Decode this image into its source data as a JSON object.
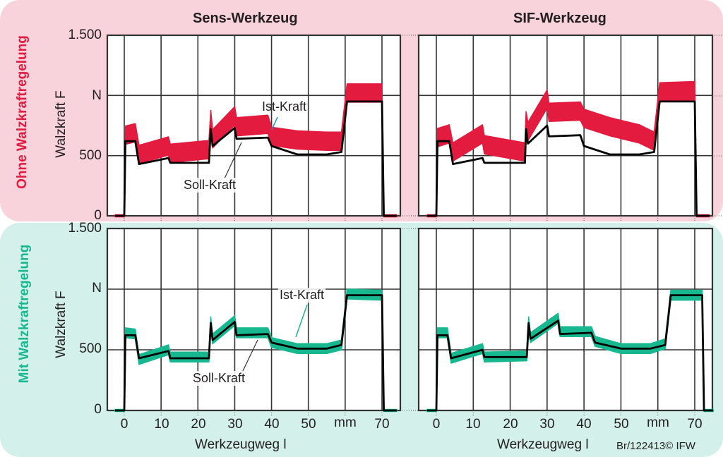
{
  "colors": {
    "ist_top": "#e31b3f",
    "ist_bottom": "#17b890",
    "soll": "#000000",
    "panel_top_bg": "#f8d3dc",
    "panel_bottom_bg": "#d3f0ea",
    "label_top": "#e31b3f",
    "label_bottom": "#17b890",
    "leader_top": "#1a8fd0"
  },
  "columns": [
    "Sens-Werkzeug",
    "SIF-Werkzeug"
  ],
  "rows": [
    "Ohne Walzkraftregelung",
    "Mit Walzkraftregelung"
  ],
  "y_axis": {
    "label": "Walzkraft F",
    "unit": "N",
    "ticks": [
      "1.500",
      "N",
      "500",
      "0"
    ]
  },
  "x_axis": {
    "label": "Werkzeugweg l",
    "ticks": [
      "0",
      "10",
      "20",
      "30",
      "40",
      "50",
      "mm",
      "70"
    ]
  },
  "annotations": {
    "ist": "Ist-Kraft",
    "soll": "Soll-Kraft"
  },
  "credit": "Br/122413© IFW",
  "chart_data": [
    {
      "type": "line",
      "title": "Sens-Werkzeug – Ohne Walzkraftregelung",
      "xlabel": "Werkzeugweg l (mm)",
      "ylabel": "Walzkraft F (N)",
      "xlim": [
        -2.5,
        77
      ],
      "ylim": [
        0,
        1500
      ],
      "grid": true,
      "x": [
        -2.5,
        0,
        0.3,
        3,
        4,
        12,
        12.5,
        23,
        23.5,
        24,
        30,
        30.5,
        39,
        40,
        47,
        55,
        59,
        60.5,
        70,
        70.5,
        74
      ],
      "series": [
        {
          "name": "Soll-Kraft",
          "values": [
            0,
            0,
            620,
            620,
            430,
            480,
            440,
            440,
            720,
            580,
            730,
            640,
            650,
            580,
            510,
            510,
            530,
            950,
            950,
            0,
            0
          ]
        },
        {
          "name": "Ist-Kraft (mean of band)",
          "values": [
            0,
            0,
            670,
            690,
            510,
            580,
            520,
            550,
            800,
            640,
            830,
            740,
            760,
            660,
            630,
            620,
            620,
            1020,
            1020,
            0,
            0
          ]
        }
      ]
    },
    {
      "type": "line",
      "title": "SIF-Werkzeug – Ohne Walzkraftregelung",
      "xlabel": "Werkzeugweg l (mm)",
      "ylabel": "Walzkraft F (N)",
      "xlim": [
        -2.5,
        77
      ],
      "ylim": [
        0,
        1500
      ],
      "grid": true,
      "x": [
        -2.5,
        0,
        0.3,
        3.5,
        4.5,
        12.5,
        13,
        24,
        24.3,
        24.8,
        30,
        30.5,
        39,
        40,
        47,
        55,
        59,
        60.5,
        70,
        70.5,
        74
      ],
      "series": [
        {
          "name": "Soll-Kraft",
          "values": [
            0,
            0,
            620,
            620,
            430,
            480,
            440,
            440,
            720,
            600,
            750,
            660,
            670,
            580,
            510,
            510,
            530,
            950,
            950,
            0,
            0
          ]
        },
        {
          "name": "Ist-Kraft (mean of band)",
          "values": [
            0,
            0,
            650,
            680,
            530,
            680,
            590,
            530,
            790,
            700,
            970,
            860,
            870,
            810,
            740,
            680,
            620,
            1030,
            1040,
            0,
            0
          ]
        }
      ]
    },
    {
      "type": "line",
      "title": "Sens-Werkzeug – Mit Walzkraftregelung",
      "xlabel": "Werkzeugweg l (mm)",
      "ylabel": "Walzkraft F (N)",
      "xlim": [
        -2.5,
        77
      ],
      "ylim": [
        0,
        1500
      ],
      "grid": true,
      "x": [
        -2.5,
        0,
        0.3,
        3,
        4,
        12,
        12.5,
        23,
        23.5,
        24,
        30,
        30.5,
        39,
        40,
        47,
        55,
        59,
        60.5,
        70,
        70.5,
        74
      ],
      "series": [
        {
          "name": "Soll-Kraft",
          "values": [
            0,
            0,
            620,
            620,
            430,
            490,
            430,
            430,
            720,
            580,
            730,
            620,
            630,
            560,
            510,
            510,
            540,
            950,
            950,
            0,
            0
          ]
        },
        {
          "name": "Ist-Kraft (mean of band)",
          "values": [
            0,
            0,
            640,
            630,
            420,
            500,
            440,
            440,
            730,
            590,
            740,
            640,
            640,
            560,
            510,
            510,
            540,
            960,
            950,
            0,
            0
          ]
        }
      ]
    },
    {
      "type": "line",
      "title": "SIF-Werkzeug – Mit Walzkraftregelung",
      "xlabel": "Werkzeugweg l (mm)",
      "ylabel": "Walzkraft F (N)",
      "xlim": [
        -2.5,
        77
      ],
      "ylim": [
        0,
        1500
      ],
      "grid": true,
      "x": [
        -2.5,
        0,
        0.3,
        3,
        4,
        12.5,
        13,
        24.5,
        25,
        25.5,
        33,
        33.5,
        42,
        43,
        50,
        58,
        62,
        63.5,
        72,
        72.5,
        75
      ],
      "series": [
        {
          "name": "Soll-Kraft",
          "values": [
            0,
            0,
            620,
            620,
            430,
            500,
            440,
            440,
            720,
            590,
            740,
            630,
            640,
            560,
            510,
            510,
            540,
            950,
            950,
            0,
            0
          ]
        },
        {
          "name": "Ist-Kraft (mean of band)",
          "values": [
            0,
            0,
            640,
            640,
            430,
            510,
            440,
            450,
            730,
            600,
            760,
            650,
            650,
            570,
            510,
            510,
            550,
            950,
            950,
            0,
            0
          ]
        }
      ]
    }
  ]
}
